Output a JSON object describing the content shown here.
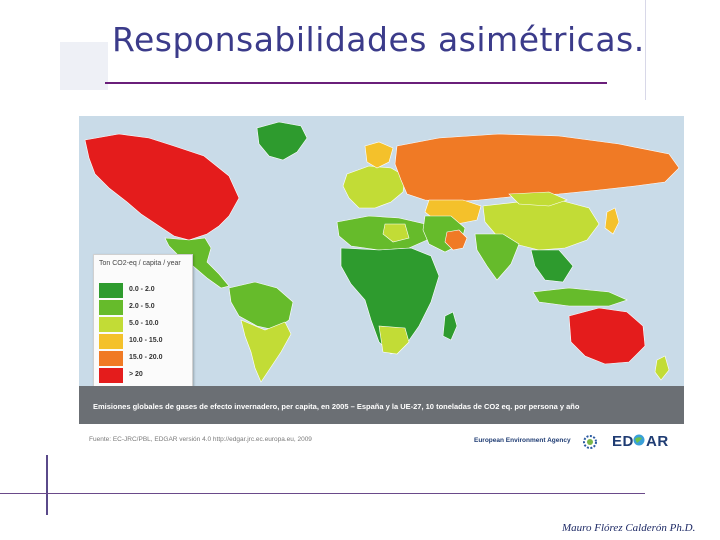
{
  "slide": {
    "title": "Responsabilidades asimétricas.",
    "author": "Mauro Flórez  Calderón Ph.D."
  },
  "map": {
    "legend": {
      "title": "Ton CO2-eq / capita / year",
      "items": [
        {
          "label": "0.0 - 2.0",
          "color": "#2e9b2e"
        },
        {
          "label": "2.0 - 5.0",
          "color": "#66bb2b"
        },
        {
          "label": "5.0 - 10.0",
          "color": "#c2dc36"
        },
        {
          "label": "10.0 - 15.0",
          "color": "#f4c12b"
        },
        {
          "label": "15.0 - 20.0",
          "color": "#f07a25"
        },
        {
          "label": "> 20",
          "color": "#e41c1c"
        }
      ]
    },
    "caption": "Emisiones globales de gases de efecto invernadero, per capita, en 2005 – España y la UE-27, 10 toneladas de CO2 eq. por persona y año",
    "source": "Fuente: EC-JRC/PBL, EDGAR versión 4.0 http://edgar.jrc.ec.europa.eu, 2009",
    "agency": "European Environment Agency",
    "edgar_logo": "EDGAR"
  }
}
